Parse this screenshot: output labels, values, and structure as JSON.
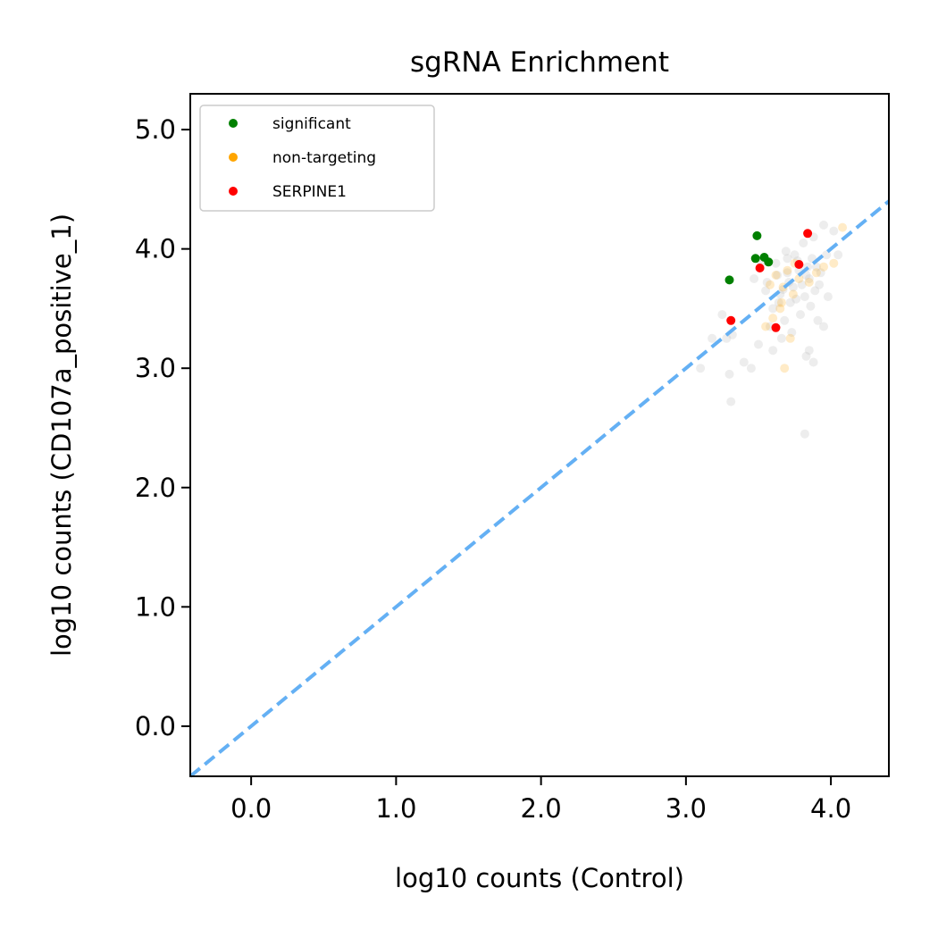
{
  "chart_data": {
    "type": "scatter",
    "title": "sgRNA Enrichment",
    "xlabel": "log10 counts (Control)",
    "ylabel": "log10 counts (CD107a_positive_1)",
    "xlim": [
      -0.42,
      4.4
    ],
    "ylim": [
      -0.42,
      5.3
    ],
    "xticks": [
      0.0,
      1.0,
      2.0,
      3.0,
      4.0
    ],
    "yticks": [
      0.0,
      1.0,
      2.0,
      3.0,
      4.0,
      5.0
    ],
    "xtick_labels": [
      "0.0",
      "1.0",
      "2.0",
      "3.0",
      "4.0"
    ],
    "ytick_labels": [
      "0.0",
      "1.0",
      "2.0",
      "3.0",
      "4.0",
      "5.0"
    ],
    "grid": false,
    "legend_position": "top-left",
    "reference_line": {
      "type": "y=x",
      "color": "#64b0f4",
      "style": "dashed"
    },
    "series": [
      {
        "name": "background",
        "in_legend": false,
        "color": "#bdbdbd",
        "points": [
          [
            3.72,
            3.55
          ],
          [
            3.8,
            3.7
          ],
          [
            3.65,
            3.62
          ],
          [
            3.9,
            3.85
          ],
          [
            3.85,
            3.75
          ],
          [
            3.7,
            3.8
          ],
          [
            3.6,
            3.5
          ],
          [
            3.95,
            4.2
          ],
          [
            3.88,
            4.1
          ],
          [
            3.75,
            3.95
          ],
          [
            3.68,
            3.4
          ],
          [
            3.82,
            3.6
          ],
          [
            3.77,
            3.9
          ],
          [
            3.92,
            3.7
          ],
          [
            3.55,
            3.65
          ],
          [
            3.63,
            3.78
          ],
          [
            3.86,
            3.52
          ],
          [
            3.74,
            3.68
          ],
          [
            3.97,
            3.95
          ],
          [
            4.02,
            4.15
          ],
          [
            3.58,
            3.35
          ],
          [
            3.66,
            3.25
          ],
          [
            3.79,
            3.45
          ],
          [
            3.84,
            3.85
          ],
          [
            3.71,
            3.72
          ],
          [
            3.93,
            3.8
          ],
          [
            3.62,
            3.88
          ],
          [
            3.89,
            3.65
          ],
          [
            3.76,
            3.58
          ],
          [
            3.69,
            3.98
          ],
          [
            3.81,
            4.05
          ],
          [
            3.87,
            3.92
          ],
          [
            3.73,
            3.3
          ],
          [
            3.64,
            3.55
          ],
          [
            3.91,
            3.4
          ],
          [
            3.78,
            3.82
          ],
          [
            3.56,
            3.72
          ],
          [
            3.67,
            3.66
          ],
          [
            3.83,
            3.78
          ],
          [
            3.85,
            3.15
          ],
          [
            3.88,
            3.05
          ],
          [
            3.83,
            3.1
          ],
          [
            3.4,
            3.05
          ],
          [
            3.3,
            2.95
          ],
          [
            3.45,
            3.0
          ],
          [
            3.1,
            3.0
          ],
          [
            3.18,
            3.25
          ],
          [
            3.28,
            3.25
          ],
          [
            3.25,
            3.45
          ],
          [
            3.32,
            3.28
          ],
          [
            3.5,
            3.2
          ],
          [
            3.6,
            3.15
          ],
          [
            3.31,
            2.72
          ],
          [
            3.82,
            2.45
          ],
          [
            3.95,
            3.35
          ],
          [
            3.98,
            3.6
          ],
          [
            4.05,
            3.95
          ],
          [
            3.52,
            3.88
          ],
          [
            3.47,
            3.75
          ],
          [
            3.7,
            3.92
          ]
        ]
      },
      {
        "name": "non-targeting",
        "in_legend": true,
        "color": "#ffa500",
        "points": [
          [
            3.62,
            3.78
          ],
          [
            3.7,
            3.82
          ],
          [
            3.58,
            3.7
          ],
          [
            3.78,
            3.75
          ],
          [
            3.66,
            3.55
          ],
          [
            3.74,
            3.62
          ],
          [
            3.95,
            3.85
          ],
          [
            4.02,
            3.88
          ],
          [
            3.65,
            3.5
          ],
          [
            3.6,
            3.42
          ],
          [
            3.55,
            3.35
          ],
          [
            3.72,
            3.25
          ],
          [
            3.68,
            3.0
          ],
          [
            3.85,
            3.72
          ],
          [
            3.9,
            3.8
          ],
          [
            4.08,
            4.18
          ],
          [
            3.75,
            3.88
          ],
          [
            3.67,
            3.68
          ]
        ]
      },
      {
        "name": "significant",
        "in_legend": true,
        "color": "#008000",
        "points": [
          [
            3.3,
            3.74
          ],
          [
            3.49,
            4.11
          ],
          [
            3.48,
            3.92
          ],
          [
            3.54,
            3.93
          ],
          [
            3.57,
            3.89
          ]
        ]
      },
      {
        "name": "SERPINE1",
        "in_legend": true,
        "color": "#ff0000",
        "points": [
          [
            3.31,
            3.4
          ],
          [
            3.51,
            3.84
          ],
          [
            3.62,
            3.34
          ],
          [
            3.78,
            3.87
          ],
          [
            3.84,
            4.13
          ]
        ]
      }
    ],
    "legend": [
      "significant",
      "non-targeting",
      "SERPINE1"
    ]
  }
}
